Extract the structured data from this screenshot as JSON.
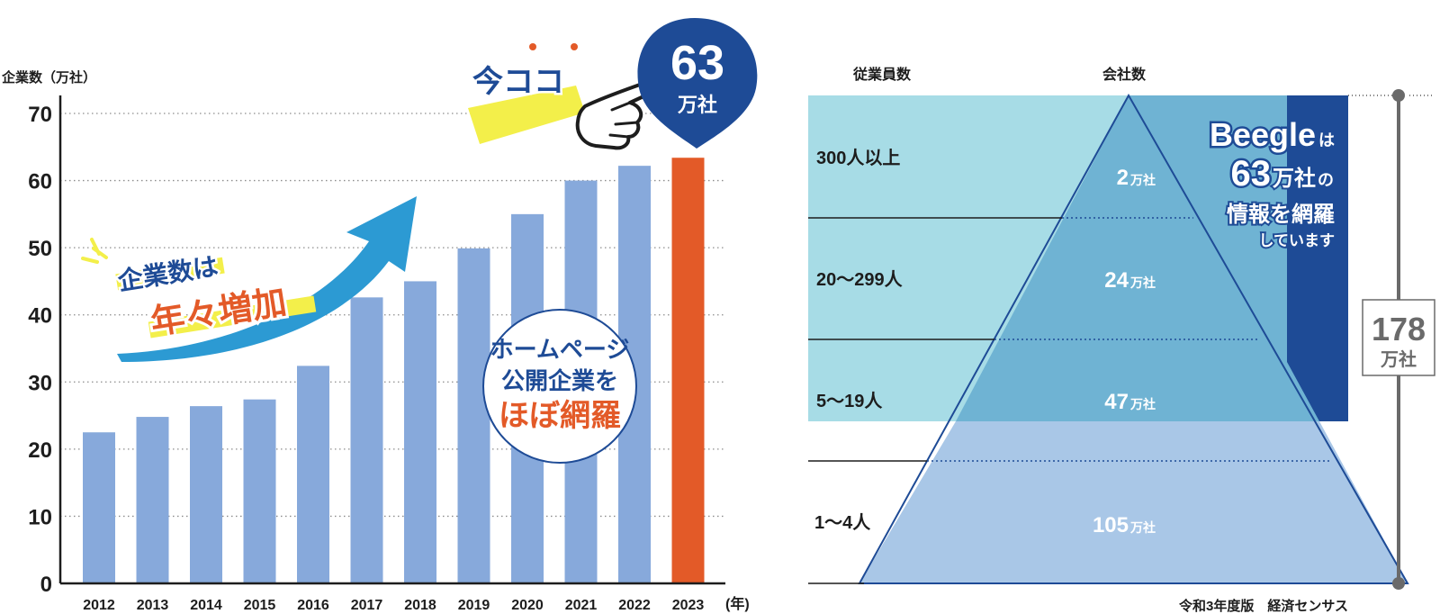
{
  "left_chart": {
    "ylabel": "企業数（万社）",
    "unit_x": "(年)",
    "callout_now": "今ココ",
    "callout_value": "63",
    "callout_unit": "万社",
    "arrow_text_1": "企業数は",
    "arrow_text_2": "年々増加",
    "circle_line_1": "ホームページ",
    "circle_line_2": "公開企業を",
    "circle_line_3": "ほぼ網羅"
  },
  "right_chart": {
    "col_employees": "従業員数",
    "col_companies": "会社数",
    "rows": [
      {
        "label": "300人以上",
        "value": "2",
        "unit": "万社"
      },
      {
        "label": "20〜299人",
        "value": "24",
        "unit": "万社"
      },
      {
        "label": "5〜19人",
        "value": "47",
        "unit": "万社"
      },
      {
        "label": "1〜4人",
        "value": "105",
        "unit": "万社"
      }
    ],
    "beegle_line_1a": "Beegle",
    "beegle_line_1b": "は",
    "beegle_line_2a": "63",
    "beegle_line_2b": "万社",
    "beegle_line_2c": "の",
    "beegle_line_3": "情報を網羅",
    "beegle_line_4": "しています",
    "total_value": "178",
    "total_unit": "万社",
    "source": "令和3年度版　経済センサス"
  },
  "colors": {
    "bar": "#87a9db",
    "bar_highlight": "#e35a28",
    "navy": "#1e4b96",
    "light_cyan": "#a7dce6",
    "mid_blue": "#6fb3d3",
    "pale_blue": "#a9c7e7",
    "arrow_blue": "#2c9ad3",
    "yellow": "#f3ef4a",
    "orange": "#e35a28"
  },
  "chart_data": [
    {
      "type": "bar",
      "categories": [
        "2012",
        "2013",
        "2014",
        "2015",
        "2016",
        "2017",
        "2018",
        "2019",
        "2020",
        "2021",
        "2022",
        "2023"
      ],
      "values": [
        22.5,
        24.8,
        26.4,
        27.4,
        32.4,
        42.6,
        45,
        49.9,
        55,
        60,
        62.2,
        63.4
      ],
      "xlabel": "(年)",
      "ylabel": "企業数（万社）",
      "ylim": [
        0,
        70
      ],
      "yticks": [
        "0",
        "10",
        "20",
        "30",
        "40",
        "50",
        "60",
        "70"
      ],
      "grid": true,
      "highlight_category": "2023"
    },
    {
      "type": "bar",
      "categories": [
        "300人以上",
        "20〜299人",
        "5〜19人",
        "1〜4人"
      ],
      "values": [
        2,
        24,
        47,
        105
      ],
      "total": 178,
      "highlight_total": 63
    }
  ]
}
